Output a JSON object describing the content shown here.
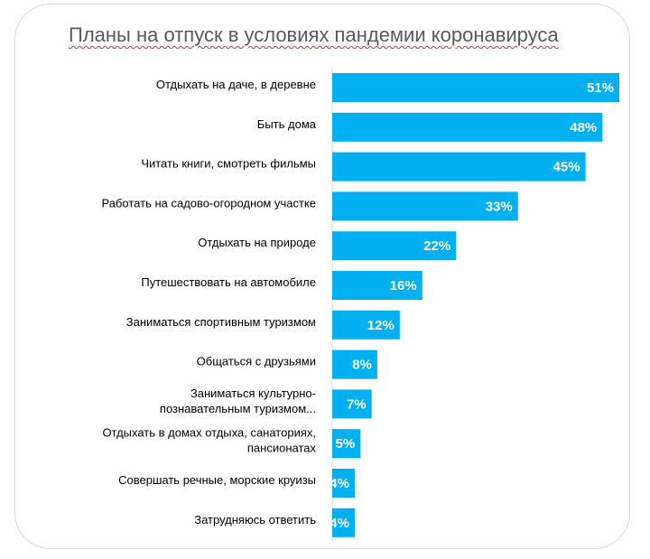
{
  "chart_data": {
    "type": "bar",
    "orientation": "horizontal",
    "title": "Планы на отпуск в условиях пандемии коронавируса",
    "xlabel": "",
    "ylabel": "",
    "xlim": [
      0,
      51
    ],
    "grid": false,
    "legend": "none",
    "bar_color": "#00b0f0",
    "categories": [
      [
        "Отдыхать на даче, в деревне"
      ],
      [
        "Быть дома"
      ],
      [
        "Читать книги, смотреть фильмы"
      ],
      [
        "Работать на садово-огородном участке"
      ],
      [
        "Отдыхать на природе"
      ],
      [
        "Путешествовать на автомобиле"
      ],
      [
        "Заниматься спортивным туризмом"
      ],
      [
        "Общаться с друзьями"
      ],
      [
        "Заниматься культурно-",
        "познавательным туризмом..."
      ],
      [
        "Отдыхать в домах отдыха, санаториях,",
        "пансионатах"
      ],
      [
        "Совершать речные, морские круизы"
      ],
      [
        "Затрудняюсь ответить"
      ]
    ],
    "values": [
      51,
      48,
      45,
      33,
      22,
      16,
      12,
      8,
      7,
      5,
      4,
      4
    ],
    "value_labels": [
      "51%",
      "48%",
      "45%",
      "33%",
      "22%",
      "16%",
      "12%",
      "8%",
      "7%",
      "5%",
      "4%",
      "4%"
    ]
  }
}
